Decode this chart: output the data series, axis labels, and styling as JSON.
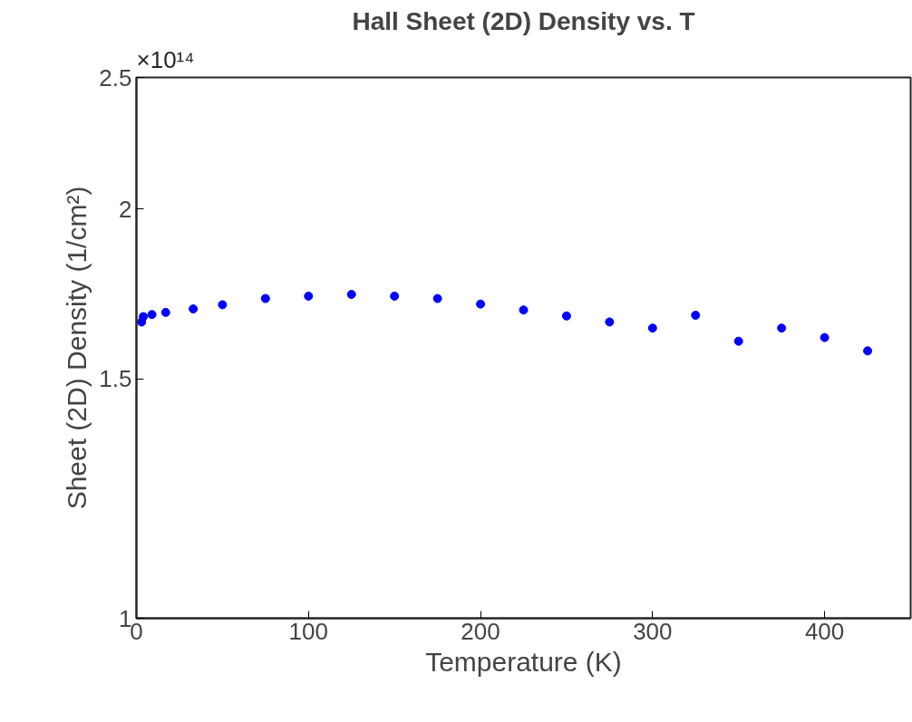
{
  "chart_data": {
    "type": "scatter",
    "title": "Hall Sheet (2D) Density vs. T",
    "xlabel": "Temperature (K)",
    "ylabel": "Sheet (2D) Density (1/cm²)",
    "annotations": [
      "×10¹⁴"
    ],
    "x": [
      3,
      4,
      9,
      17,
      33,
      50,
      75,
      100,
      125,
      150,
      175,
      200,
      225,
      250,
      275,
      300,
      325,
      350,
      375,
      400,
      425
    ],
    "series": [
      {
        "color": "#0000ff",
        "values": [
          1.652,
          1.667,
          1.673,
          1.679,
          1.689,
          1.701,
          1.719,
          1.726,
          1.731,
          1.726,
          1.719,
          1.703,
          1.686,
          1.669,
          1.652,
          1.635,
          1.671,
          1.599,
          1.635,
          1.609,
          1.573
        ]
      }
    ],
    "xlim": [
      0,
      450
    ],
    "xticks": [
      0,
      100,
      200,
      300,
      400
    ],
    "ylim": [
      1,
      2.5
    ],
    "yticks": [
      1,
      1.5,
      2,
      2.5
    ],
    "log": "y",
    "marker": "circle",
    "grid": false
  }
}
